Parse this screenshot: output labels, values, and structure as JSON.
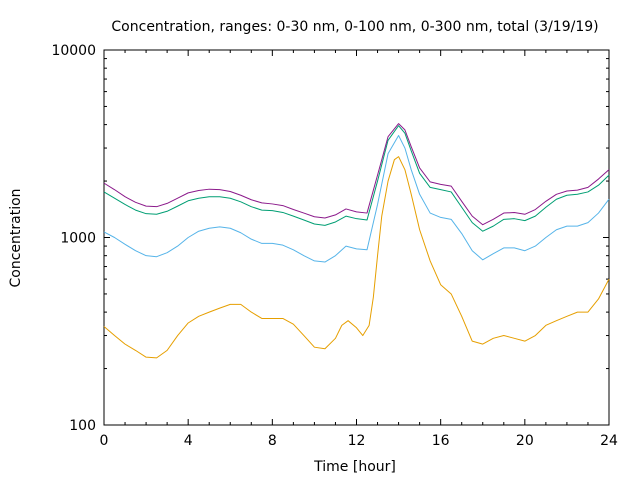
{
  "chart_data": {
    "type": "line",
    "title": "Concentration, ranges: 0-30 nm, 0-100 nm, 0-300 nm, total (3/19/19)",
    "xlabel": "Time [hour]",
    "ylabel": "Concentration",
    "xlim": [
      0,
      24
    ],
    "ylim": [
      100,
      10000
    ],
    "yscale": "log",
    "grid": false,
    "x_ticks": [
      0,
      4,
      8,
      12,
      16,
      20,
      24
    ],
    "y_ticks": [
      100,
      1000,
      10000
    ],
    "series": [
      {
        "color": "#e69f00",
        "x": [
          0,
          0.5,
          1,
          1.5,
          2,
          2.5,
          3,
          3.5,
          4,
          4.5,
          5,
          5.5,
          6,
          6.5,
          7,
          7.5,
          8,
          8.5,
          9,
          9.5,
          10,
          10.5,
          11,
          11.3,
          11.6,
          12,
          12.3,
          12.6,
          12.8,
          13,
          13.2,
          13.5,
          13.8,
          14,
          14.3,
          14.6,
          15,
          15.5,
          16,
          16.5,
          17,
          17.5,
          18,
          18.5,
          19,
          19.5,
          20,
          20.5,
          21,
          21.5,
          22,
          22.5,
          23,
          23.5,
          24
        ],
        "y": [
          335,
          300,
          270,
          250,
          230,
          228,
          250,
          300,
          350,
          380,
          400,
          420,
          440,
          440,
          400,
          370,
          370,
          370,
          345,
          300,
          260,
          255,
          290,
          340,
          360,
          330,
          300,
          340,
          480,
          800,
          1300,
          2000,
          2600,
          2700,
          2300,
          1700,
          1100,
          750,
          560,
          500,
          380,
          280,
          270,
          290,
          300,
          290,
          280,
          300,
          340,
          360,
          380,
          400,
          400,
          470,
          600
        ]
      },
      {
        "color": "#56b4e9",
        "x": [
          0,
          0.5,
          1,
          1.5,
          2,
          2.5,
          3,
          3.5,
          4,
          4.5,
          5,
          5.5,
          6,
          6.5,
          7,
          7.5,
          8,
          8.5,
          9,
          9.5,
          10,
          10.5,
          11,
          11.5,
          12,
          12.5,
          13,
          13.5,
          14,
          14.3,
          14.6,
          15,
          15.5,
          16,
          16.5,
          17,
          17.5,
          18,
          18.5,
          19,
          19.5,
          20,
          20.5,
          21,
          21.5,
          22,
          22.5,
          23,
          23.5,
          24
        ],
        "y": [
          1070,
          1000,
          920,
          850,
          800,
          790,
          830,
          900,
          1000,
          1080,
          1120,
          1140,
          1120,
          1060,
          980,
          930,
          930,
          910,
          860,
          800,
          750,
          740,
          800,
          900,
          870,
          860,
          1500,
          2800,
          3500,
          3000,
          2300,
          1700,
          1350,
          1280,
          1250,
          1050,
          850,
          760,
          820,
          880,
          880,
          850,
          900,
          1000,
          1100,
          1150,
          1150,
          1200,
          1350,
          1600
        ]
      },
      {
        "color": "#009e73",
        "x": [
          0,
          0.5,
          1,
          1.5,
          2,
          2.5,
          3,
          3.5,
          4,
          4.5,
          5,
          5.5,
          6,
          6.5,
          7,
          7.5,
          8,
          8.5,
          9,
          9.5,
          10,
          10.5,
          11,
          11.5,
          12,
          12.5,
          13,
          13.5,
          14,
          14.3,
          14.6,
          15,
          15.5,
          16,
          16.5,
          17,
          17.5,
          18,
          18.5,
          19,
          19.5,
          20,
          20.5,
          21,
          21.5,
          22,
          22.5,
          23,
          23.5,
          24
        ],
        "y": [
          1750,
          1620,
          1500,
          1400,
          1340,
          1330,
          1380,
          1470,
          1570,
          1620,
          1650,
          1650,
          1620,
          1550,
          1460,
          1400,
          1390,
          1360,
          1300,
          1240,
          1180,
          1160,
          1210,
          1300,
          1260,
          1240,
          2000,
          3300,
          3950,
          3600,
          2900,
          2200,
          1850,
          1800,
          1750,
          1450,
          1200,
          1080,
          1150,
          1250,
          1260,
          1230,
          1300,
          1450,
          1600,
          1680,
          1700,
          1750,
          1900,
          2150
        ]
      },
      {
        "color": "#8b1a8b",
        "x": [
          0,
          0.5,
          1,
          1.5,
          2,
          2.5,
          3,
          3.5,
          4,
          4.5,
          5,
          5.5,
          6,
          6.5,
          7,
          7.5,
          8,
          8.5,
          9,
          9.5,
          10,
          10.5,
          11,
          11.5,
          12,
          12.5,
          13,
          13.5,
          14,
          14.3,
          14.6,
          15,
          15.5,
          16,
          16.5,
          17,
          17.5,
          18,
          18.5,
          19,
          19.5,
          20,
          20.5,
          21,
          21.5,
          22,
          22.5,
          23,
          23.5,
          24
        ],
        "y": [
          1950,
          1800,
          1650,
          1540,
          1470,
          1460,
          1520,
          1620,
          1730,
          1780,
          1810,
          1800,
          1760,
          1680,
          1590,
          1530,
          1510,
          1480,
          1410,
          1350,
          1290,
          1270,
          1320,
          1420,
          1370,
          1350,
          2150,
          3450,
          4050,
          3750,
          3050,
          2350,
          1980,
          1920,
          1880,
          1560,
          1300,
          1170,
          1250,
          1350,
          1360,
          1330,
          1410,
          1560,
          1700,
          1770,
          1790,
          1850,
          2050,
          2300
        ]
      }
    ]
  }
}
